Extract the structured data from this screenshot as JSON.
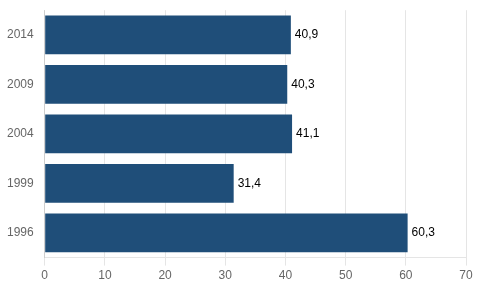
{
  "chart_data": {
    "type": "bar",
    "orientation": "horizontal",
    "categories": [
      "1996",
      "1999",
      "2004",
      "2009",
      "2014"
    ],
    "values": [
      60.3,
      31.4,
      41.1,
      40.3,
      40.9
    ],
    "value_labels": [
      "60,3",
      "31,4",
      "41,1",
      "40,3",
      "40,9"
    ],
    "data_labels": true,
    "color": "#1F4E79",
    "xlim": [
      0,
      70
    ],
    "xticks": [
      0,
      10,
      20,
      30,
      40,
      50,
      60,
      70
    ],
    "grid": true
  }
}
